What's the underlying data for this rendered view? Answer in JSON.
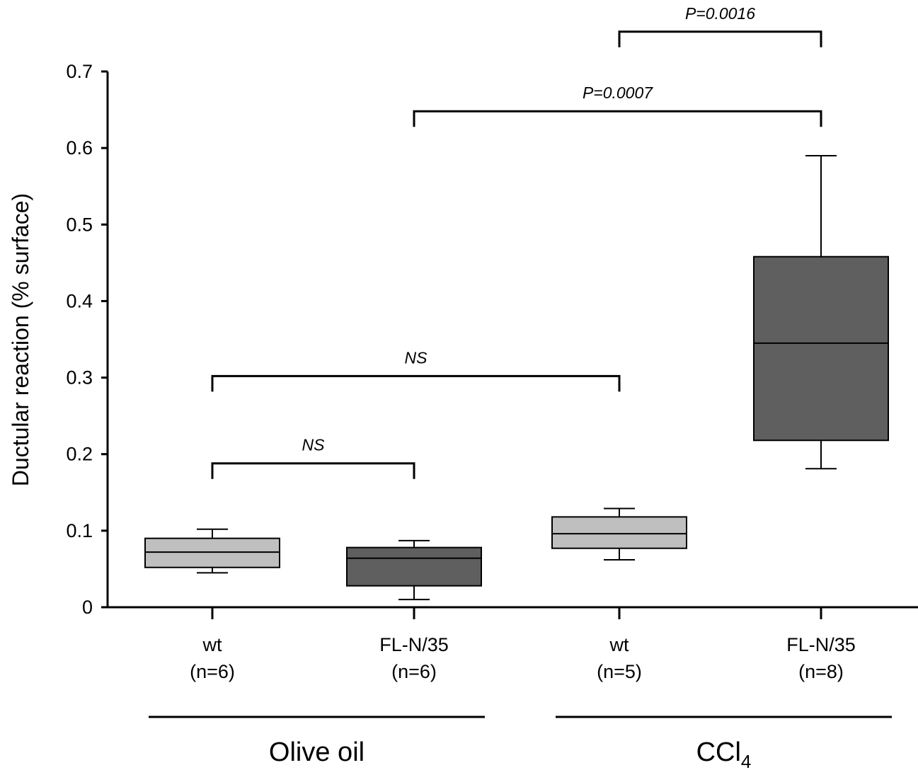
{
  "chart_data": {
    "type": "box",
    "ylabel": "Ductular reaction (% surface)",
    "xlabel": "",
    "ylim": [
      0,
      0.7
    ],
    "yticks": [
      "0",
      "0.1",
      "0.2",
      "0.3",
      "0.4",
      "0.5",
      "0.6",
      "0.7"
    ],
    "boxes": [
      {
        "label": "wt",
        "n": "(n=6)",
        "group": "Olive oil",
        "color": "#bfbfbf",
        "whisker_low": 0.045,
        "q1": 0.052,
        "median": 0.072,
        "q3": 0.09,
        "whisker_high": 0.102
      },
      {
        "label": "FL-N/35",
        "n": "(n=6)",
        "group": "Olive oil",
        "color": "#5f5f5f",
        "whisker_low": 0.01,
        "q1": 0.028,
        "median": 0.064,
        "q3": 0.078,
        "whisker_high": 0.087
      },
      {
        "label": "wt",
        "n": "(n=5)",
        "group": "CCl4",
        "color": "#bfbfbf",
        "whisker_low": 0.062,
        "q1": 0.077,
        "median": 0.096,
        "q3": 0.118,
        "whisker_high": 0.129
      },
      {
        "label": "FL-N/35",
        "n": "(n=8)",
        "group": "CCl4",
        "color": "#5f5f5f",
        "whisker_low": 0.181,
        "q1": 0.218,
        "median": 0.345,
        "q3": 0.458,
        "whisker_high": 0.59
      }
    ],
    "groups": [
      {
        "label": "Olive oil",
        "text": "Olive oil",
        "sub": ""
      },
      {
        "label": "CCl4",
        "text": "CCl",
        "sub": "4"
      }
    ],
    "comparisons": [
      {
        "from": 0,
        "to": 1,
        "label": "NS",
        "y": 0.188
      },
      {
        "from": 0,
        "to": 2,
        "label": "NS",
        "y": 0.302
      },
      {
        "from": 1,
        "to": 3,
        "label": "P=0.0007",
        "y": 0.648
      },
      {
        "from": 2,
        "to": 3,
        "label": "P=0.0016",
        "y": 0.752
      }
    ]
  }
}
